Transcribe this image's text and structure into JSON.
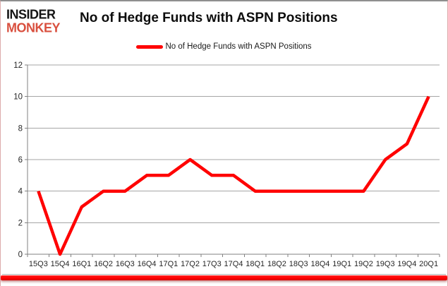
{
  "logo": {
    "line1": "INSIDER",
    "line2": "MONKEY"
  },
  "header": {
    "title": "No of Hedge Funds with ASPN Positions"
  },
  "legend": {
    "label": "No of Hedge Funds with ASPN Positions"
  },
  "chart_data": {
    "type": "line",
    "title": "No of Hedge Funds with ASPN Positions",
    "categories": [
      "15Q3",
      "15Q4",
      "16Q1",
      "16Q2",
      "16Q3",
      "16Q4",
      "17Q1",
      "17Q2",
      "17Q3",
      "17Q4",
      "18Q1",
      "18Q2",
      "18Q3",
      "18Q4",
      "19Q1",
      "19Q2",
      "19Q3",
      "19Q4",
      "20Q1"
    ],
    "series": [
      {
        "name": "No of Hedge Funds with ASPN Positions",
        "color": "#ff0000",
        "values": [
          4,
          0,
          3,
          4,
          4,
          5,
          5,
          6,
          5,
          5,
          4,
          4,
          4,
          4,
          4,
          4,
          6,
          7,
          10
        ]
      }
    ],
    "xlabel": "",
    "ylabel": "",
    "ylim": [
      0,
      12
    ],
    "ytick_step": 2,
    "grid": true,
    "legend_position": "top",
    "gridline_color": "#a6a6a6",
    "axis_color": "#808080",
    "line_width": 4.5
  },
  "colors": {
    "accent_red": "#ff0000",
    "logo_black": "#151515",
    "logo_red": "#d9503f",
    "frame_border": "#8f8f8f",
    "bottom_bar": "#ff0000"
  }
}
